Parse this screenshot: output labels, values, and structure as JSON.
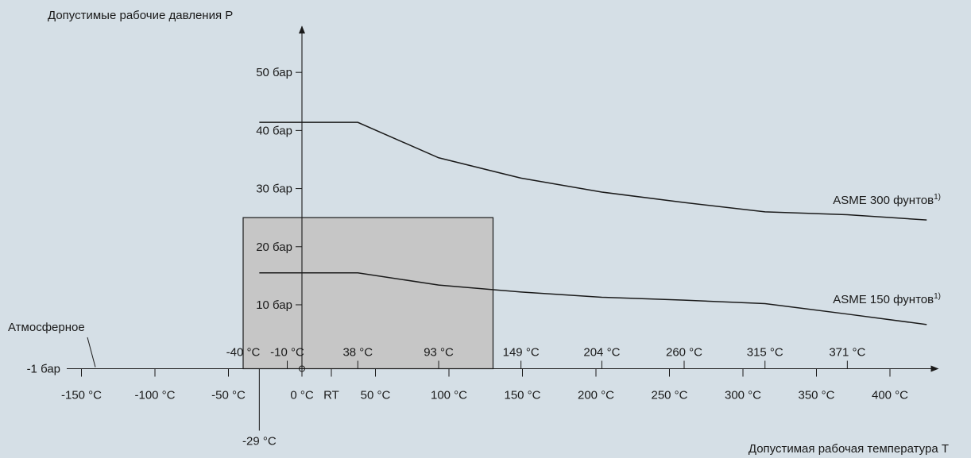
{
  "colors": {
    "background": "#d5dfe6",
    "axis": "#1a1a1a",
    "shaded_region": "#c6c6c6"
  },
  "chart_data": {
    "type": "line",
    "ylabel": "Допустимые рабочие давления P",
    "xlabel": "Допустимая рабочая температура T",
    "x_unit": "°C",
    "xlim": [
      -175,
      430
    ],
    "ylim": [
      -1,
      56
    ],
    "grid": false,
    "y_ticks": [
      {
        "value": 10,
        "label": "10 бар"
      },
      {
        "value": 20,
        "label": "20 бар"
      },
      {
        "value": 30,
        "label": "30 бар"
      },
      {
        "value": 40,
        "label": "40 бар"
      },
      {
        "value": 50,
        "label": "50 бар"
      }
    ],
    "y_special": [
      {
        "value": -1,
        "label": "-1 бар",
        "note": "Атмосферное"
      }
    ],
    "x_ticks_bottom": [
      {
        "value": -150,
        "label": "-150 °C"
      },
      {
        "value": -100,
        "label": "-100 °C"
      },
      {
        "value": -50,
        "label": "-50 °C"
      },
      {
        "value": 0,
        "label": "0 °C"
      },
      {
        "value": 20,
        "label": "RT"
      },
      {
        "value": 50,
        "label": "50 °C"
      },
      {
        "value": 100,
        "label": "100 °C"
      },
      {
        "value": 150,
        "label": "150 °C"
      },
      {
        "value": 200,
        "label": "200 °C"
      },
      {
        "value": 250,
        "label": "250 °C"
      },
      {
        "value": 300,
        "label": "300 °C"
      },
      {
        "value": 350,
        "label": "350 °C"
      },
      {
        "value": 400,
        "label": "400 °C"
      }
    ],
    "x_ticks_top": [
      {
        "value": -40,
        "label": "-40 °C"
      },
      {
        "value": -10,
        "label": "-10 °C"
      },
      {
        "value": 38,
        "label": "38 °C"
      },
      {
        "value": 93,
        "label": "93 °C"
      },
      {
        "value": 149,
        "label": "149 °C"
      },
      {
        "value": 204,
        "label": "204 °C"
      },
      {
        "value": 260,
        "label": "260 °C"
      },
      {
        "value": 315,
        "label": "315 °C"
      },
      {
        "value": 371,
        "label": "371 °C"
      }
    ],
    "x_marker_below": {
      "value": -29,
      "label": "-29 °C"
    },
    "shaded_region": {
      "x": [
        -40,
        130
      ],
      "y": [
        -1,
        25
      ]
    },
    "series": [
      {
        "name": "ASME 300 фунтов",
        "superscript": "1)",
        "x": [
          -29,
          38,
          93,
          149,
          204,
          260,
          315,
          371,
          425
        ],
        "y": [
          41.4,
          41.4,
          35.3,
          31.8,
          29.4,
          27.6,
          26.0,
          25.5,
          24.6
        ]
      },
      {
        "name": "ASME 150 фунтов",
        "superscript": "1)",
        "x": [
          -29,
          38,
          93,
          149,
          204,
          260,
          315,
          371,
          425
        ],
        "y": [
          15.5,
          15.5,
          13.4,
          12.2,
          11.3,
          10.8,
          10.2,
          8.4,
          6.6
        ]
      }
    ]
  }
}
